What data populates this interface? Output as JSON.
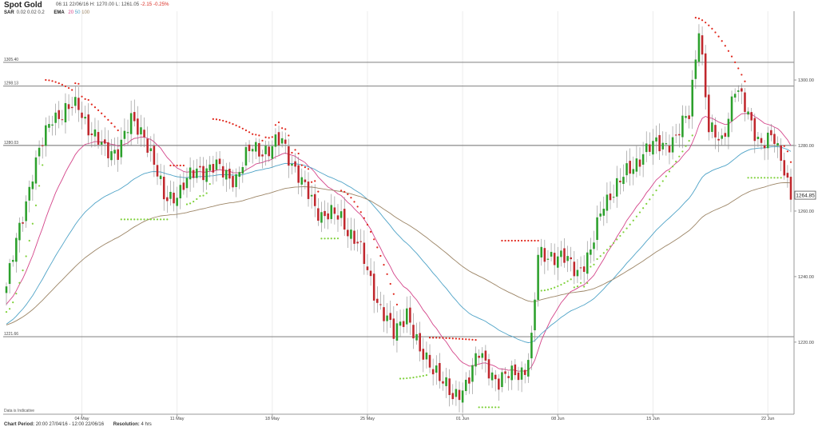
{
  "header": {
    "title": "Spot Gold",
    "quote": "06:11 22/06/16  H: 1270.00  L: 1261.05",
    "change": "-2.15 -0.25%",
    "sar_label": "SAR",
    "sar_params": "0.02 0.02 0.2",
    "ema_label": "EMA",
    "ema_20": "20",
    "ema_50": "50",
    "ema_100": "100"
  },
  "footer": {
    "period_label": "Chart Period:",
    "period_value": "20:00 27/04/16 - 12:00 22/06/16",
    "resolution_label": "Resolution:",
    "resolution_value": "4 hrs"
  },
  "colors": {
    "up": "#2ca02c",
    "down": "#c0272d",
    "ema20": "#d4458a",
    "ema50": "#4fa3c7",
    "ema100": "#9c8566",
    "sar_up": "#7fd13b",
    "sar_down": "#e0261b"
  },
  "chart_data": {
    "type": "candlestick",
    "ylim": [
      1198,
      1321
    ],
    "y_ticks": [
      "1300.00",
      "1280.00",
      "1260.00",
      "1240.00",
      "1220.00"
    ],
    "y_tick_values": [
      1300,
      1280,
      1260,
      1240,
      1220
    ],
    "x_tick_labels": [
      "04 May",
      "11 May",
      "18 May",
      "25 May",
      "01 Jun",
      "08 Jun",
      "15 Jun",
      "22 Jun"
    ],
    "current_price": "1264.85",
    "current_price_value": 1264.85,
    "horizontal_levels": [
      {
        "label": "1305.40",
        "value": 1305.4
      },
      {
        "label": "1298.13",
        "value": 1298.13
      },
      {
        "label": "1280.03",
        "value": 1280.03
      },
      {
        "label": "1221.66",
        "value": 1221.66
      }
    ],
    "close_anchors": [
      [
        0,
        1237
      ],
      [
        8,
        1272
      ],
      [
        14,
        1289
      ],
      [
        22,
        1292
      ],
      [
        26,
        1284
      ],
      [
        30,
        1278
      ],
      [
        34,
        1279
      ],
      [
        38,
        1287
      ],
      [
        42,
        1284
      ],
      [
        48,
        1264
      ],
      [
        53,
        1266
      ],
      [
        58,
        1273
      ],
      [
        64,
        1273
      ],
      [
        70,
        1270
      ],
      [
        75,
        1280
      ],
      [
        80,
        1278
      ],
      [
        84,
        1282
      ],
      [
        90,
        1268
      ],
      [
        96,
        1259
      ],
      [
        102,
        1258
      ],
      [
        107,
        1250
      ],
      [
        113,
        1233
      ],
      [
        118,
        1222
      ],
      [
        122,
        1230
      ],
      [
        126,
        1216
      ],
      [
        131,
        1212
      ],
      [
        136,
        1202
      ],
      [
        140,
        1208
      ],
      [
        144,
        1216
      ],
      [
        150,
        1208
      ],
      [
        154,
        1210
      ],
      [
        158,
        1212
      ],
      [
        160,
        1220
      ],
      [
        162,
        1246
      ],
      [
        166,
        1247
      ],
      [
        170,
        1245
      ],
      [
        174,
        1242
      ],
      [
        178,
        1247
      ],
      [
        182,
        1263
      ],
      [
        188,
        1270
      ],
      [
        194,
        1278
      ],
      [
        198,
        1280
      ],
      [
        204,
        1282
      ],
      [
        208,
        1290
      ],
      [
        211,
        1317
      ],
      [
        214,
        1284
      ],
      [
        218,
        1282
      ],
      [
        222,
        1297
      ],
      [
        226,
        1290
      ],
      [
        230,
        1280
      ],
      [
        234,
        1282
      ],
      [
        237,
        1274
      ],
      [
        239,
        1264
      ]
    ],
    "sar": {
      "points_green_at_top_of_bullish": true,
      "segments_up": [
        [
          0,
          11
        ],
        [
          35,
          49
        ],
        [
          55,
          62
        ],
        [
          96,
          101
        ],
        [
          120,
          128
        ],
        [
          144,
          150
        ],
        [
          163,
          209
        ],
        [
          226,
          236
        ]
      ],
      "segments_down": [
        [
          12,
          34
        ],
        [
          50,
          54
        ],
        [
          63,
          95
        ],
        [
          102,
          119
        ],
        [
          129,
          143
        ],
        [
          151,
          162
        ],
        [
          210,
          225
        ],
        [
          237,
          239
        ]
      ]
    },
    "annotation": "Data is Indicative"
  }
}
